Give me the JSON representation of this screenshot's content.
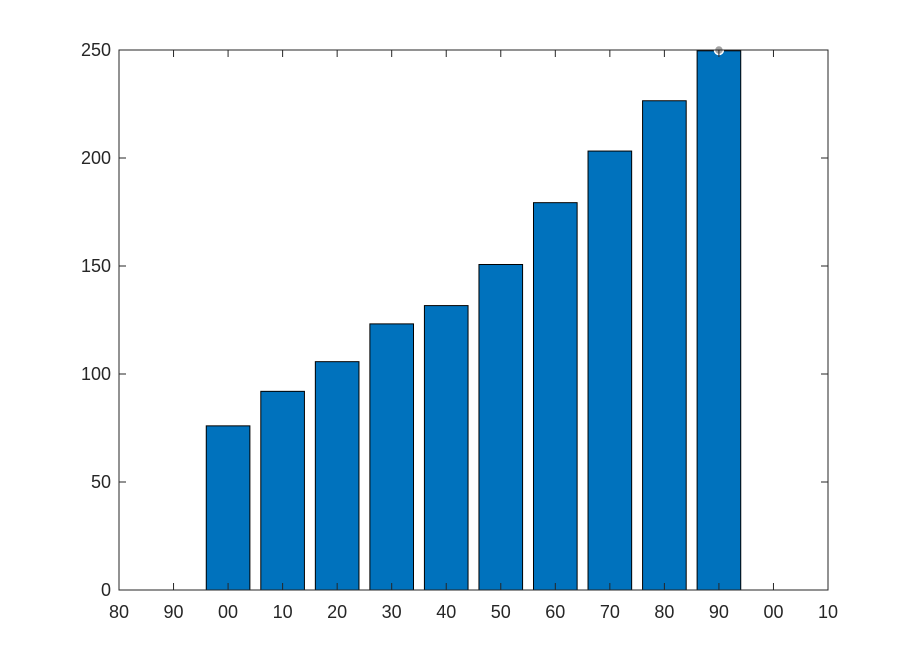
{
  "chart_data": {
    "type": "bar",
    "title": "",
    "xlabel": "",
    "ylabel": "",
    "x": [
      1900,
      1910,
      1920,
      1930,
      1940,
      1950,
      1960,
      1970,
      1980,
      1990
    ],
    "values": [
      75.995,
      91.972,
      105.711,
      123.203,
      131.669,
      150.697,
      179.323,
      203.212,
      226.505,
      249.633
    ],
    "xlim": [
      1880,
      2010
    ],
    "ylim": [
      0,
      250
    ],
    "xticks": [
      1880,
      1890,
      1900,
      1910,
      1920,
      1930,
      1940,
      1950,
      1960,
      1970,
      1980,
      1990,
      2000,
      2010
    ],
    "xtick_labels": [
      "80",
      "90",
      "00",
      "10",
      "20",
      "30",
      "40",
      "50",
      "60",
      "70",
      "80",
      "90",
      "00",
      "10"
    ],
    "yticks": [
      0,
      50,
      100,
      150,
      200,
      250
    ],
    "ytick_labels": [
      "0",
      "50",
      "100",
      "150",
      "200",
      "250"
    ],
    "bar_width_years": 8,
    "grid": false,
    "box": true,
    "colors": {
      "bar_fill": "#0072BD",
      "bar_edge": "#000000",
      "axes": "#262626",
      "marker": "#A2A2A2"
    },
    "marker": {
      "x": 1990,
      "y": 250
    }
  }
}
